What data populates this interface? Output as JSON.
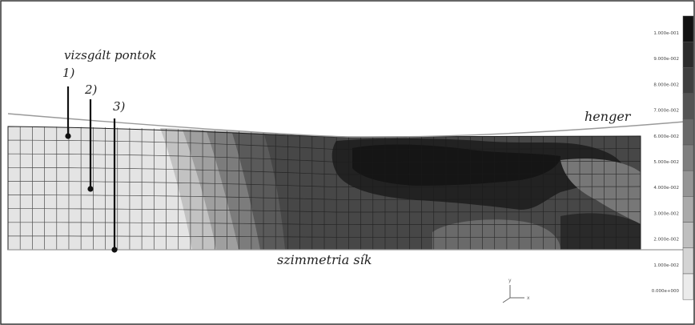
{
  "annotations": {
    "points_label": "vizsgált pontok",
    "point_1": "1)",
    "point_2": "2)",
    "point_3": "3)",
    "roller_label": "henger",
    "symmetry_label": "szimmetria sík"
  },
  "legend": {
    "values": [
      "1.000e-001",
      "9.000e-002",
      "8.000e-002",
      "7.000e-002",
      "6.000e-002",
      "5.000e-002",
      "4.000e-002",
      "3.000e-002",
      "2.000e-002",
      "1.000e-002",
      "0.000e+000"
    ],
    "colors": [
      "#111111",
      "#2c2c2c",
      "#3f3f3f",
      "#545454",
      "#696969",
      "#7f7f7f",
      "#959595",
      "#aaaaaa",
      "#bfbfbf",
      "#d4d4d4",
      "#ebebeb"
    ]
  },
  "axis_triad": {
    "icon": "coordinate-axes-icon"
  }
}
